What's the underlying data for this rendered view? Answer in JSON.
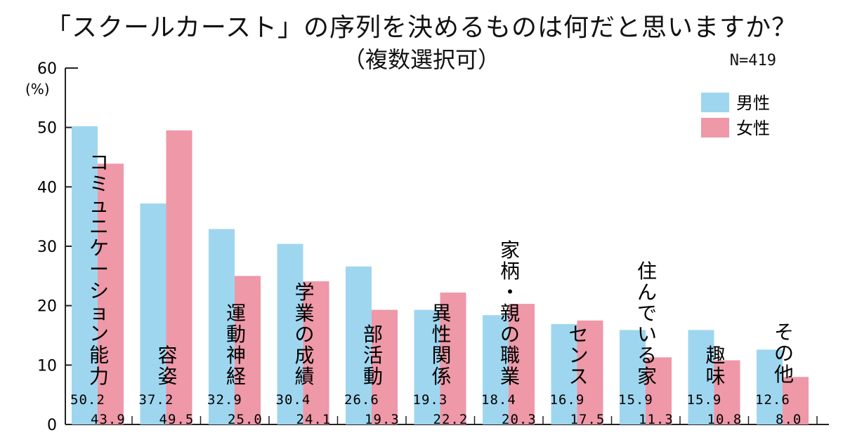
{
  "title": "「スクールカースト」の序列を決めるものは何だと思いますか？",
  "subtitle": "（複数選択可）",
  "n_label": "N=419",
  "colors": {
    "male": "#9fd6ef",
    "female": "#ee98a8"
  },
  "chart_data": {
    "type": "bar",
    "y_unit": "(%)",
    "ylim": [
      0,
      60
    ],
    "yticks": [
      "0",
      "10",
      "20",
      "30",
      "40",
      "50",
      "60"
    ],
    "legend_placement": "top-right",
    "categories": [
      "コミュニケーション能力",
      "容姿",
      "運動神経",
      "学業の成績",
      "部活動",
      "異性関係",
      "家柄・親の職業",
      "センス",
      "住んでいる家",
      "趣味",
      "その他"
    ],
    "series": [
      {
        "name": "男性",
        "values": [
          50.2,
          37.2,
          32.9,
          30.4,
          26.6,
          19.3,
          18.4,
          16.9,
          15.9,
          15.9,
          12.6
        ],
        "labels": [
          "50.2",
          "37.2",
          "32.9",
          "30.4",
          "26.6",
          "19.3",
          "18.4",
          "16.9",
          "15.9",
          "15.9",
          "12.6"
        ]
      },
      {
        "name": "女性",
        "values": [
          43.9,
          49.5,
          25.0,
          24.1,
          19.3,
          22.2,
          20.3,
          17.5,
          11.3,
          10.8,
          8.0
        ],
        "labels": [
          "43.9",
          "49.5",
          "25.0",
          "24.1",
          "19.3",
          "22.2",
          "20.3",
          "17.5",
          "11.3",
          "10.8",
          "8.0"
        ]
      }
    ]
  }
}
